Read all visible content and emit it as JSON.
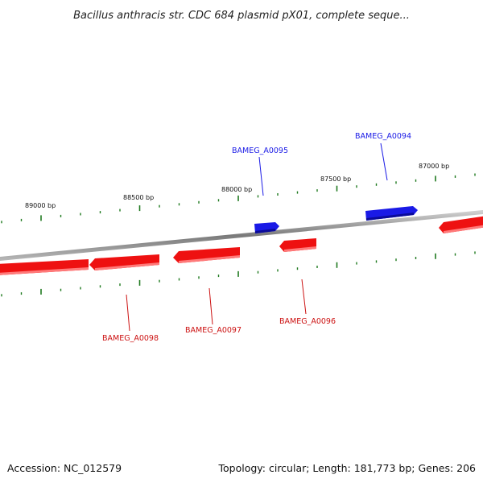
{
  "title": "Bacillus anthracis str. CDC 684 plasmid pX01, complete seque...",
  "footer": {
    "accession": "Accession: NC_012579",
    "summary": "Topology: circular; Length: 181,773 bp; Genes: 206"
  },
  "colors": {
    "forward_gene": "#1a1ae6",
    "reverse_gene": "#ee1111",
    "backbone": "#888888",
    "ticks": "#1f7a1f"
  },
  "scale_labels": [
    "89000 bp",
    "88500 bp",
    "88000 bp",
    "87500 bp",
    "87000 bp"
  ],
  "genes": [
    {
      "id": "g94",
      "name": "BAMEG_A0094",
      "strand": "forward"
    },
    {
      "id": "g95",
      "name": "BAMEG_A0095",
      "strand": "forward"
    },
    {
      "id": "g96",
      "name": "BAMEG_A0096",
      "strand": "reverse"
    },
    {
      "id": "g97",
      "name": "BAMEG_A0097",
      "strand": "reverse"
    },
    {
      "id": "g98",
      "name": "BAMEG_A0098",
      "strand": "reverse"
    }
  ]
}
